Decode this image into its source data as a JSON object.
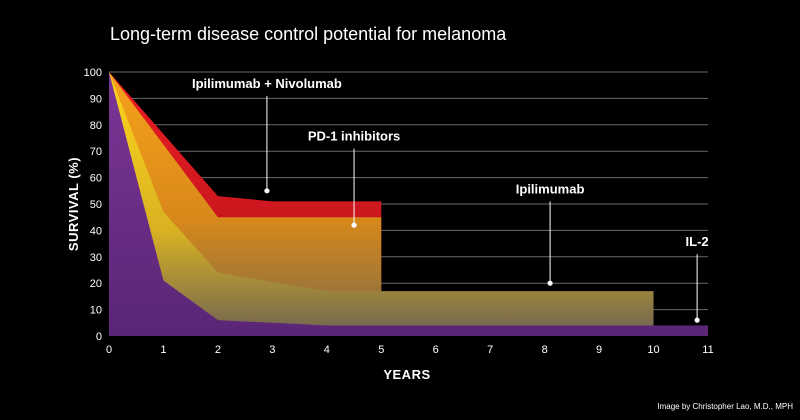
{
  "chart_data": {
    "type": "area",
    "title": "Long-term disease control potential for melanoma",
    "xlabel": "YEARS",
    "ylabel": "SURVIVAL (%)",
    "xlim": [
      0,
      11
    ],
    "ylim": [
      0,
      100
    ],
    "x_ticks": [
      0,
      1,
      2,
      3,
      4,
      5,
      6,
      7,
      8,
      9,
      10,
      11
    ],
    "y_ticks": [
      0,
      10,
      20,
      30,
      40,
      50,
      60,
      70,
      80,
      90,
      100
    ],
    "grid": true,
    "series": [
      {
        "name": "Ipilimumab + Nivolumab",
        "color": "#e8202a",
        "x": [
          0,
          2,
          3,
          5
        ],
        "y": [
          100,
          53,
          51,
          51
        ]
      },
      {
        "name": "PD-1 inhibitors",
        "color": "#f39a1e",
        "x": [
          0,
          2,
          5
        ],
        "y": [
          100,
          45,
          45
        ]
      },
      {
        "name": "Ipilimumab",
        "color": "#ffd21a",
        "x": [
          0,
          1,
          2,
          4,
          10
        ],
        "y": [
          100,
          47,
          24,
          17,
          17
        ]
      },
      {
        "name": "IL-2",
        "color": "#6a2c8a",
        "x": [
          0,
          1,
          2,
          4,
          11
        ],
        "y": [
          100,
          21,
          6,
          4,
          4
        ]
      }
    ],
    "annotations": [
      {
        "text": "Ipilimumab + Nivolumab",
        "point": [
          2.9,
          55
        ],
        "label_at": [
          2.9,
          94
        ]
      },
      {
        "text": "PD-1 inhibitors",
        "point": [
          4.5,
          42
        ],
        "label_at": [
          4.5,
          74
        ]
      },
      {
        "text": "Ipilimumab",
        "point": [
          8.1,
          20
        ],
        "label_at": [
          8.1,
          54
        ]
      },
      {
        "text": "IL-2",
        "point": [
          10.8,
          6
        ],
        "label_at": [
          10.8,
          34
        ]
      }
    ],
    "credit": "Image by Christopher Lao, M.D., MPH"
  }
}
